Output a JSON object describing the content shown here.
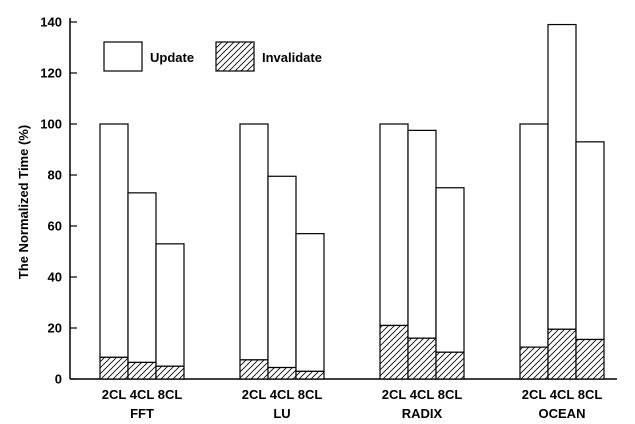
{
  "chart_data": {
    "type": "bar",
    "stacked": true,
    "ylabel": "The Normalized Time (%)",
    "ylim": [
      0,
      140
    ],
    "yticks": [
      0,
      20,
      40,
      60,
      80,
      100,
      120,
      140
    ],
    "grid": false,
    "legend_position": "top-left",
    "series": [
      {
        "name": "Update",
        "fill": "white"
      },
      {
        "name": "Invalidate",
        "fill": "diagonal-hatch"
      }
    ],
    "groups": [
      {
        "label": "FFT",
        "bars": [
          {
            "label": "2CL",
            "total": 100,
            "invalidate": 8.5
          },
          {
            "label": "4CL",
            "total": 73,
            "invalidate": 6.5
          },
          {
            "label": "8CL",
            "total": 53,
            "invalidate": 5
          }
        ]
      },
      {
        "label": "LU",
        "bars": [
          {
            "label": "2CL",
            "total": 100,
            "invalidate": 7.5
          },
          {
            "label": "4CL",
            "total": 79.5,
            "invalidate": 4.5
          },
          {
            "label": "8CL",
            "total": 57,
            "invalidate": 3
          }
        ]
      },
      {
        "label": "RADIX",
        "bars": [
          {
            "label": "2CL",
            "total": 100,
            "invalidate": 21
          },
          {
            "label": "4CL",
            "total": 97.5,
            "invalidate": 16
          },
          {
            "label": "8CL",
            "total": 75,
            "invalidate": 10.5
          }
        ]
      },
      {
        "label": "OCEAN",
        "bars": [
          {
            "label": "2CL",
            "total": 100,
            "invalidate": 12.5
          },
          {
            "label": "4CL",
            "total": 139,
            "invalidate": 19.5
          },
          {
            "label": "8CL",
            "total": 93,
            "invalidate": 15.5
          }
        ]
      }
    ]
  }
}
